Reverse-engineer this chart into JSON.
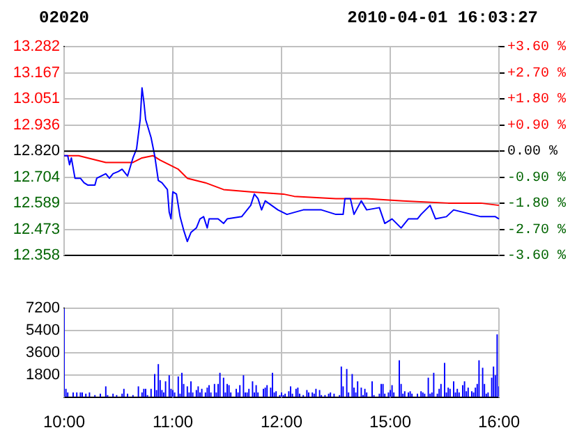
{
  "chart_data": [
    {
      "type": "line",
      "title": "02020",
      "subtitle": "2010-04-01 16:03:27",
      "marker": "none",
      "line_style": "solid",
      "grid": true,
      "categories": [
        null,
        null,
        null,
        null,
        null,
        null,
        null,
        null,
        null,
        null,
        null,
        null,
        null,
        null,
        null,
        null,
        null,
        null,
        null,
        null,
        null,
        null,
        null,
        null,
        null,
        null,
        null,
        null,
        null,
        null,
        null,
        null,
        null,
        null,
        null,
        null,
        null,
        null,
        null,
        null,
        null,
        null,
        null,
        null,
        null,
        null,
        null,
        null,
        null,
        null,
        null,
        null,
        null,
        null,
        null,
        null,
        null,
        null,
        null,
        null,
        null,
        null,
        null,
        null,
        null,
        null,
        null,
        null,
        null,
        null,
        null,
        null,
        null,
        null,
        null,
        null,
        null,
        null,
        null,
        null,
        null,
        null,
        null,
        null,
        null,
        null,
        null,
        null,
        null,
        null,
        null,
        null,
        null,
        null,
        null,
        null,
        null,
        null,
        null,
        null,
        null,
        null,
        null,
        null,
        null,
        null,
        null,
        null,
        null,
        null,
        null,
        null,
        null,
        null,
        null,
        null,
        null,
        null,
        null,
        null,
        null,
        null,
        null,
        null,
        null,
        null,
        null,
        null,
        null,
        null,
        null,
        null,
        null,
        null,
        null,
        null,
        null,
        null,
        null,
        null,
        null,
        null,
        null,
        null,
        null,
        null,
        null,
        null,
        null,
        null,
        null,
        null,
        null,
        null,
        null,
        null,
        null,
        null,
        null,
        null,
        null,
        null,
        null,
        null,
        null,
        null,
        null,
        null,
        null,
        null,
        null,
        null,
        null,
        null,
        null,
        null,
        null,
        null,
        null,
        null,
        null,
        null,
        null,
        null,
        null,
        null,
        null,
        null,
        null,
        null,
        null,
        null,
        null,
        null,
        null,
        null,
        null,
        null,
        null,
        null,
        null,
        null,
        null,
        null,
        null,
        null,
        null,
        null,
        null,
        null,
        null,
        null,
        null,
        null,
        null,
        null,
        null,
        null,
        null,
        null,
        null,
        null,
        null,
        null,
        null,
        null,
        null,
        null,
        null,
        null,
        null,
        null,
        null,
        null,
        null,
        null,
        null,
        null,
        null,
        null,
        null
      ],
      "ylim": [
        12.358,
        13.282
      ],
      "yticks": [
        {
          "value": 12.358,
          "label": "12.358"
        },
        {
          "value": 12.473,
          "label": "12.473"
        },
        {
          "value": 12.589,
          "label": "12.589"
        },
        {
          "value": 12.704,
          "label": "12.704"
        },
        {
          "value": 12.82,
          "label": "12.820"
        },
        {
          "value": 12.936,
          "label": "12.936"
        },
        {
          "value": 13.051,
          "label": "13.051"
        },
        {
          "value": 13.167,
          "label": "13.167"
        },
        {
          "value": 13.282,
          "label": "13.282"
        }
      ],
      "y2lim": [
        -3.6,
        3.6
      ],
      "y2ticks": [
        {
          "value": -3.6,
          "label": "-3.60 %"
        },
        {
          "value": -2.7,
          "label": "-2.70 %"
        },
        {
          "value": -1.8,
          "label": "-1.80 %"
        },
        {
          "value": -0.9,
          "label": "-0.90 %"
        },
        {
          "value": 0,
          "label": "0.00 %"
        },
        {
          "value": 0.9,
          "label": "+0.90 %"
        },
        {
          "value": 1.8,
          "label": "+1.80 %"
        },
        {
          "value": 2.7,
          "label": "+2.70 %"
        },
        {
          "value": 3.6,
          "label": "+3.60 %"
        }
      ],
      "ref_lines": [
        {
          "axis": "y",
          "value": 12.82,
          "color": "#000000"
        }
      ],
      "series": [
        {
          "color": "#0000ff",
          "values": [
            12.8,
            null,
            12.8,
            12.76,
            12.79,
            null,
            12.7,
            null,
            null,
            12.7,
            null,
            12.68,
            null,
            12.67,
            null,
            null,
            null,
            12.67,
            12.7,
            null,
            null,
            null,
            null,
            12.72,
            null,
            12.7,
            null,
            12.72,
            null,
            null,
            12.73,
            null,
            12.74,
            null,
            12.72,
            12.71,
            null,
            null,
            12.79,
            null,
            12.83,
            null,
            12.96,
            13.1,
            13.04,
            12.96,
            null,
            null,
            12.88,
            null,
            12.8,
            null,
            12.69,
            null,
            12.68,
            null,
            null,
            12.65,
            12.55,
            12.52,
            12.64,
            null,
            12.63,
            null,
            12.53,
            null,
            12.47,
            null,
            12.42,
            null,
            12.46,
            null,
            null,
            12.48,
            null,
            12.52,
            null,
            12.53,
            null,
            12.48,
            12.52,
            null,
            null,
            null,
            null,
            12.52,
            null,
            null,
            12.5,
            null,
            12.52,
            null,
            null,
            null,
            null,
            null,
            null,
            null,
            12.53,
            null,
            null,
            null,
            null,
            12.58,
            null,
            12.63,
            null,
            12.61,
            null,
            12.56,
            null,
            12.6,
            null,
            null,
            null,
            null,
            null,
            null,
            12.56,
            null,
            null,
            null,
            null,
            12.54,
            null,
            null,
            null,
            null,
            null,
            null,
            null,
            null,
            12.56,
            null,
            null,
            null,
            null,
            null,
            null,
            null,
            null,
            null,
            12.56,
            null,
            null,
            null,
            null,
            null,
            null,
            null,
            12.54,
            null,
            null,
            null,
            12.54,
            12.61,
            null,
            null,
            12.61,
            null,
            12.54,
            null,
            null,
            null,
            12.6,
            null,
            null,
            12.56,
            null,
            null,
            null,
            null,
            null,
            null,
            12.57,
            null,
            null,
            12.5,
            null,
            null,
            null,
            12.52,
            null,
            null,
            null,
            null,
            12.48,
            null,
            null,
            null,
            12.52,
            null,
            null,
            null,
            null,
            12.52,
            null,
            12.54,
            null,
            null,
            null,
            null,
            12.58,
            null,
            null,
            12.52,
            null,
            null,
            null,
            null,
            null,
            12.53,
            null,
            null,
            null,
            12.56,
            null,
            null,
            null,
            null,
            12.55,
            null,
            null,
            null,
            null,
            12.54,
            null,
            null,
            null,
            null,
            12.53,
            null,
            null,
            null,
            null,
            null,
            null,
            null,
            12.53,
            null,
            12.52
          ]
        },
        {
          "color": "#ff0000",
          "values": [
            12.8,
            null,
            null,
            null,
            null,
            null,
            null,
            null,
            12.8,
            null,
            null,
            null,
            null,
            null,
            null,
            null,
            null,
            null,
            null,
            null,
            null,
            null,
            null,
            12.77,
            null,
            null,
            null,
            null,
            null,
            null,
            null,
            null,
            null,
            null,
            null,
            null,
            null,
            null,
            12.77,
            null,
            null,
            null,
            null,
            12.79,
            null,
            null,
            null,
            null,
            null,
            12.8,
            null,
            null,
            null,
            12.78,
            null,
            null,
            null,
            null,
            12.76,
            null,
            null,
            null,
            null,
            12.74,
            null,
            null,
            null,
            null,
            12.7,
            null,
            null,
            null,
            null,
            null,
            null,
            null,
            null,
            null,
            12.68,
            null,
            null,
            null,
            null,
            null,
            null,
            null,
            null,
            null,
            12.65,
            null,
            null,
            null,
            null,
            null,
            null,
            null,
            null,
            null,
            null,
            null,
            null,
            null,
            null,
            12.64,
            null,
            null,
            null,
            null,
            null,
            null,
            null,
            null,
            null,
            null,
            null,
            null,
            null,
            null,
            null,
            null,
            null,
            12.63,
            null,
            null,
            null,
            null,
            null,
            12.62,
            null,
            null,
            null,
            null,
            null,
            null,
            null,
            null,
            null,
            null,
            null,
            null,
            null,
            null,
            null,
            null,
            null,
            null,
            null,
            null,
            null,
            null,
            12.61,
            null,
            null,
            null,
            null,
            null,
            null,
            null,
            null,
            null,
            null,
            null,
            null,
            null,
            null,
            null,
            null,
            12.61,
            null,
            null,
            null,
            null,
            null,
            null,
            null,
            null,
            null,
            null,
            null,
            null,
            null,
            null,
            null,
            null,
            null,
            null,
            null,
            12.6,
            null,
            null,
            null,
            null,
            null,
            null,
            null,
            null,
            null,
            null,
            null,
            null,
            null,
            null,
            null,
            null,
            null,
            null,
            null,
            null,
            null,
            null,
            null,
            null,
            12.59,
            null,
            null,
            null,
            null,
            null,
            null,
            null,
            null,
            null,
            null,
            null,
            null,
            null,
            null,
            null,
            null,
            null,
            12.59,
            null,
            null,
            null,
            null,
            null,
            null,
            null,
            null,
            null,
            12.58
          ]
        }
      ]
    },
    {
      "type": "bar",
      "color": "#0000ff",
      "grid": true,
      "categories": [
        "10:00",
        null,
        null,
        null,
        null,
        null,
        null,
        null,
        null,
        null,
        null,
        null,
        null,
        null,
        null,
        null,
        null,
        null,
        null,
        null,
        null,
        null,
        null,
        null,
        null,
        null,
        null,
        null,
        null,
        null,
        null,
        null,
        null,
        null,
        null,
        null,
        null,
        null,
        null,
        null,
        null,
        null,
        null,
        null,
        null,
        null,
        null,
        null,
        null,
        null,
        null,
        null,
        null,
        null,
        null,
        null,
        null,
        null,
        null,
        null,
        "11:00",
        null,
        null,
        null,
        null,
        null,
        null,
        null,
        null,
        null,
        null,
        null,
        null,
        null,
        null,
        null,
        null,
        null,
        null,
        null,
        null,
        null,
        null,
        null,
        null,
        null,
        null,
        null,
        null,
        null,
        null,
        null,
        null,
        null,
        null,
        null,
        null,
        null,
        null,
        null,
        null,
        null,
        null,
        null,
        null,
        null,
        null,
        null,
        null,
        null,
        null,
        null,
        null,
        null,
        null,
        null,
        null,
        null,
        null,
        null,
        "12:00",
        null,
        null,
        null,
        null,
        null,
        null,
        null,
        null,
        null,
        null,
        null,
        null,
        null,
        null,
        null,
        null,
        null,
        null,
        null,
        null,
        null,
        null,
        null,
        null,
        null,
        null,
        null,
        null,
        null,
        null,
        null,
        null,
        null,
        null,
        null,
        null,
        null,
        null,
        null,
        null,
        null,
        null,
        null,
        null,
        null,
        null,
        null,
        null,
        null,
        null,
        null,
        null,
        null,
        null,
        null,
        null,
        null,
        null,
        null,
        "15:00",
        null,
        null,
        null,
        null,
        null,
        null,
        null,
        null,
        null,
        null,
        null,
        null,
        null,
        null,
        null,
        null,
        null,
        null,
        null,
        null,
        null,
        null,
        null,
        null,
        null,
        null,
        null,
        null,
        null,
        null,
        null,
        null,
        null,
        null,
        null,
        null,
        null,
        null,
        null,
        null,
        null,
        null,
        null,
        null,
        null,
        null,
        null,
        null,
        null,
        null,
        null,
        null,
        null,
        null,
        null,
        null,
        null,
        null,
        null,
        "16:00"
      ],
      "ylim": [
        0,
        7200
      ],
      "yticks": [
        {
          "value": 0,
          "label": null
        },
        1800,
        3600,
        5400,
        7200
      ],
      "values": [
        7200,
        700,
        400,
        null,
        null,
        400,
        null,
        400,
        null,
        400,
        400,
        null,
        300,
        null,
        400,
        null,
        null,
        200,
        null,
        null,
        300,
        null,
        null,
        900,
        200,
        null,
        null,
        300,
        null,
        200,
        null,
        null,
        300,
        700,
        null,
        300,
        null,
        null,
        200,
        null,
        null,
        900,
        null,
        400,
        700,
        700,
        200,
        null,
        700,
        null,
        1900,
        600,
        2700,
        1400,
        600,
        400,
        1300,
        null,
        1800,
        700,
        600,
        400,
        null,
        1700,
        300,
        2000,
        1100,
        null,
        900,
        400,
        1300,
        400,
        null,
        600,
        900,
        400,
        700,
        null,
        400,
        800,
        1000,
        400,
        null,
        1100,
        400,
        1100,
        2000,
        null,
        1600,
        400,
        1100,
        1000,
        400,
        null,
        null,
        700,
        400,
        1000,
        null,
        1800,
        400,
        400,
        700,
        null,
        1300,
        400,
        1000,
        400,
        null,
        null,
        700,
        800,
        1000,
        null,
        800,
        2000,
        400,
        500,
        null,
        200,
        400,
        200,
        300,
        null,
        500,
        900,
        300,
        null,
        700,
        800,
        300,
        null,
        200,
        null,
        600,
        400,
        null,
        400,
        300,
        700,
        null,
        600,
        200,
        null,
        200,
        null,
        300,
        400,
        null,
        300,
        null,
        null,
        200,
        2500,
        900,
        null,
        2300,
        400,
        null,
        1900,
        800,
        400,
        1300,
        null,
        800,
        200,
        700,
        400,
        null,
        null,
        1300,
        200,
        null,
        null,
        300,
        1100,
        1100,
        300,
        null,
        400,
        600,
        1000,
        400,
        null,
        null,
        3000,
        1100,
        300,
        500,
        null,
        400,
        500,
        300,
        null,
        null,
        300,
        null,
        500,
        400,
        300,
        null,
        1600,
        300,
        400,
        2000,
        null,
        300,
        700,
        1100,
        null,
        2800,
        400,
        800,
        700,
        null,
        1300,
        400,
        700,
        400,
        null,
        1000,
        1300,
        500,
        800,
        null,
        500,
        400,
        800,
        1100,
        3000,
        null,
        2400,
        1100,
        300,
        400,
        null,
        1600,
        2500,
        1800,
        5100,
        900
      ]
    }
  ]
}
